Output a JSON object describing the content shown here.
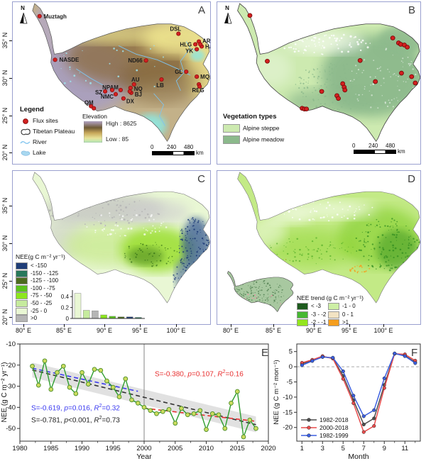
{
  "panels": {
    "a": {
      "label": "A",
      "north": "N",
      "lat_ticks": [
        "35° N",
        "30° N",
        "25° N",
        "20° N"
      ],
      "legend": {
        "title": "Legend",
        "flux": "Flux sites",
        "plateau": "Tibetan Plateau",
        "river": "River",
        "lake": "Lake"
      },
      "elevation": {
        "title": "Elevation",
        "high": "High : 8625",
        "low": "Low : 85"
      },
      "scalebar": {
        "labels": [
          "0",
          "240",
          "480"
        ],
        "unit": "km"
      },
      "sites": [
        [
          "Muztagh",
          38,
          20,
          44,
          23,
          "start"
        ],
        [
          "NASDE",
          60,
          82,
          66,
          85,
          "start"
        ],
        [
          "ND66",
          189,
          83,
          184,
          86,
          "end"
        ],
        [
          "DSL",
          235,
          45,
          231,
          41,
          "middle"
        ],
        [
          "HLG",
          259,
          60,
          254,
          63,
          "end"
        ],
        [
          "AR",
          264,
          56,
          269,
          58,
          "start"
        ],
        [
          "YK",
          261,
          67,
          256,
          72,
          "end"
        ],
        [
          "Haibei",
          268,
          63,
          273,
          66,
          "start"
        ],
        [
          "GL",
          246,
          99,
          241,
          102,
          "end"
        ],
        [
          "MQ",
          261,
          106,
          266,
          109,
          "start"
        ],
        [
          "REG",
          264,
          117,
          263,
          128,
          "middle"
        ],
        [
          "LB",
          211,
          110,
          209,
          121,
          "middle"
        ],
        [
          "AU",
          172,
          117,
          174,
          113,
          "middle"
        ],
        [
          "NQ",
          167,
          122,
          172,
          126,
          "start"
        ],
        [
          "BJ",
          168,
          129,
          173,
          134,
          "start"
        ],
        [
          "NPAM",
          153,
          125,
          150,
          124,
          "end"
        ],
        [
          "SZ",
          131,
          127,
          127,
          131,
          "end"
        ],
        [
          "NMC",
          146,
          131,
          143,
          137,
          "end"
        ],
        [
          "DX",
          157,
          137,
          161,
          144,
          "start"
        ],
        [
          "QM",
          111,
          148,
          108,
          146,
          "middle"
        ]
      ],
      "extra_dots": [
        [
          115,
          151
        ],
        [
          166,
          127
        ],
        [
          141,
          125
        ],
        [
          266,
          60
        ],
        [
          265,
          120
        ]
      ]
    },
    "b": {
      "label": "B",
      "north": "N",
      "legend": {
        "title": "Vegetation types",
        "items": [
          {
            "label": "Alpine steppe",
            "color": "#cdeab0"
          },
          {
            "label": "Alpine meadow",
            "color": "#8cb98c"
          }
        ]
      },
      "scalebar": {
        "labels": [
          "0",
          "240",
          "480"
        ],
        "unit": "km"
      },
      "dots": [
        [
          45,
          19
        ],
        [
          69,
          84
        ],
        [
          197,
          83
        ],
        [
          242,
          51
        ],
        [
          250,
          58
        ],
        [
          253,
          60
        ],
        [
          258,
          61
        ],
        [
          262,
          64
        ],
        [
          254,
          101
        ],
        [
          268,
          106
        ],
        [
          273,
          115
        ],
        [
          218,
          113
        ],
        [
          173,
          116
        ],
        [
          175,
          121
        ],
        [
          176,
          125
        ],
        [
          165,
          133
        ],
        [
          167,
          137
        ],
        [
          144,
          127
        ],
        [
          117,
          151
        ],
        [
          120,
          152
        ],
        [
          123,
          152
        ]
      ]
    },
    "c": {
      "label": "C",
      "lat_ticks": [
        "35° N",
        "30° N",
        "25° N",
        "20° N"
      ],
      "lon_ticks": [
        "80° E",
        "85° E",
        "90° E",
        "95° E",
        "100° E"
      ],
      "legend": {
        "title": "NEE(g C m⁻² yr⁻¹)",
        "items": [
          {
            "label": "< -150",
            "color": "#1f3d78"
          },
          {
            "label": "-150 - -125",
            "color": "#27785c"
          },
          {
            "label": "-125 - -100",
            "color": "#4c6b1f"
          },
          {
            "label": "-100 - -75",
            "color": "#5cc41e"
          },
          {
            "label": "-75 - -50",
            "color": "#8ce61e"
          },
          {
            "label": "-50 - -25",
            "color": "#c6eb9e"
          },
          {
            "label": "-25 - 0",
            "color": "#e9f7d4"
          },
          {
            "label": ">0",
            "color": "#b5b5b5"
          }
        ]
      }
    },
    "d": {
      "label": "D",
      "lon_ticks": [
        "80° E",
        "85° E",
        "90° E",
        "95° E",
        "100° E"
      ],
      "legend": {
        "title": "NEE trend (g C m⁻² yr⁻¹)",
        "items": [
          {
            "label": "< -3",
            "color": "#1e5b1e"
          },
          {
            "label": "-3 - -2",
            "color": "#46b832"
          },
          {
            "label": "-2 - -1",
            "color": "#94e61e"
          },
          {
            "label": "-1 - 0",
            "color": "#cdefa5"
          },
          {
            "label": "0 - 1",
            "color": "#f2e3c3"
          },
          {
            "label": ">1",
            "color": "#f59e1e"
          }
        ]
      }
    },
    "e": {
      "label": "E"
    },
    "f": {
      "label": "F"
    }
  },
  "chart_data": [
    {
      "id": "annual_nee_trend",
      "type": "line",
      "xlabel": "Year",
      "ylabel": "NEE (g C m⁻² yr⁻¹)",
      "xlim": [
        1980,
        2020
      ],
      "ylim": [
        -56,
        -10
      ],
      "xticks": [
        1980,
        1985,
        1990,
        1995,
        2000,
        2005,
        2010,
        2015,
        2020
      ],
      "yticks": [
        -10,
        -20,
        -30,
        -40,
        -50
      ],
      "series": [
        {
          "name": "annual NEE",
          "color": "#2f9e2f",
          "marker_fill": "#cbdc5e",
          "x_start": 1982,
          "values": [
            -20.5,
            -29.5,
            -18,
            -31.5,
            -23.5,
            -20.5,
            -30.5,
            -33.5,
            -23.5,
            -29,
            -22,
            -22.5,
            -27.5,
            -30.5,
            -35,
            -26.5,
            -36.5,
            -38,
            -40,
            -41.5,
            -43,
            -42,
            -41,
            -47.5,
            -40.5,
            -43.5,
            -43,
            -41.5,
            -50.5,
            -43,
            -43.5,
            -50,
            -38,
            -32.5,
            -54,
            -46,
            -50
          ]
        }
      ],
      "trends": [
        {
          "name": "1982-2018",
          "color": "#333333",
          "x": [
            1982,
            2018
          ],
          "y": [
            -22.3,
            -48.2
          ],
          "annotation": "S=-0.781, p<0.001, R^2=0.73"
        },
        {
          "name": "1982-1999",
          "color": "#3a3af0",
          "x": [
            1982,
            1999
          ],
          "y": [
            -21.5,
            -32.4
          ],
          "annotation": "S=-0.619, p=0.016, R^2=0.32"
        },
        {
          "name": "2000-2018",
          "color": "#e83030",
          "x": [
            2000,
            2018
          ],
          "y": [
            -40.4,
            -46.6
          ],
          "annotation": "S=-0.380, p=0.107, R^2=0.16"
        }
      ],
      "vline_x": 2000,
      "band": {
        "x": [
          1982,
          2018
        ],
        "upper": [
          -18.8,
          -44.3
        ],
        "lower": [
          -25.8,
          -51.8
        ],
        "color": "#dcdcdc"
      }
    },
    {
      "id": "monthly_nee",
      "type": "line",
      "xlabel": "Month",
      "ylabel": "NEE (g C m⁻² mon⁻¹)",
      "xlim": [
        0.5,
        12.5
      ],
      "ylim": [
        -24.5,
        7.5
      ],
      "xticks": [
        1,
        3,
        5,
        7,
        9,
        11
      ],
      "yticks": [
        5,
        0,
        -5,
        -10,
        -15,
        -20
      ],
      "x": [
        1,
        2,
        3,
        4,
        5,
        6,
        7,
        8,
        9,
        10,
        11,
        12
      ],
      "series": [
        {
          "name": "1982-2018",
          "color": "#4d4d4d",
          "values": [
            1.0,
            2.0,
            3.3,
            2.8,
            -3.0,
            -11.0,
            -19.0,
            -17.0,
            -6.0,
            4.3,
            3.7,
            1.5
          ]
        },
        {
          "name": "2000-2018",
          "color": "#e84b4b",
          "values": [
            1.3,
            2.3,
            3.5,
            2.7,
            -4.0,
            -12.0,
            -21.5,
            -19.5,
            -7.0,
            4.3,
            4.1,
            2.0
          ]
        },
        {
          "name": "1982-1999",
          "color": "#3b5fe0",
          "values": [
            0.5,
            1.9,
            3.2,
            3.0,
            -1.5,
            -9.5,
            -16.3,
            -14.3,
            -3.8,
            4.4,
            3.5,
            1.2
          ]
        }
      ],
      "zero_line": true
    },
    {
      "id": "nee_area_fraction_histogram",
      "type": "bar",
      "categories": [
        "-25 - 0",
        "-50 - -25",
        ">0",
        "-75 - -50",
        "-100 - -75",
        "-125 - -100",
        "< -150",
        "-150 - -125"
      ],
      "values": [
        0.46,
        0.15,
        0.14,
        0.065,
        0.04,
        0.03,
        0.03,
        0.02
      ],
      "colors": [
        "#e9f7d4",
        "#c6eb9e",
        "#b5b5b5",
        "#8ce61e",
        "#5cc41e",
        "#4c6b1f",
        "#1f3d78",
        "#27785c"
      ],
      "yticks": [
        0,
        0.2,
        0.4
      ]
    }
  ]
}
